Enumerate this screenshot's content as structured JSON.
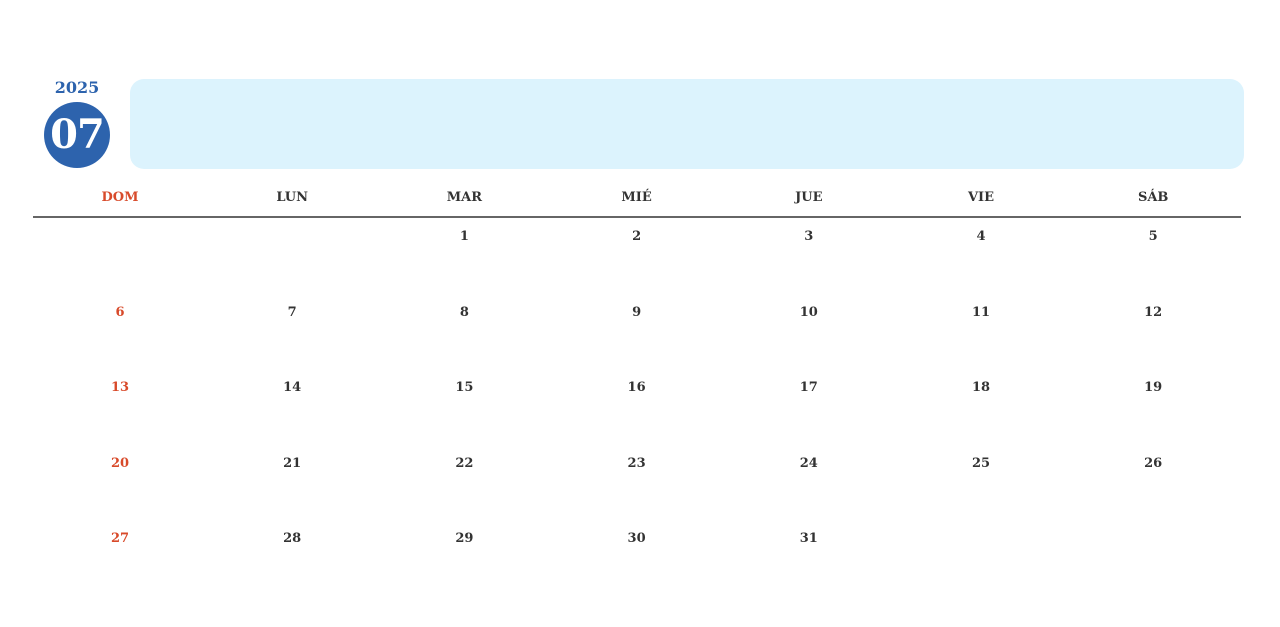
{
  "header": {
    "year": "2025",
    "month": "07"
  },
  "colors": {
    "accent": "#2d63ad",
    "sunday": "#d84a2a",
    "notes_bg": "#dcf3fd"
  },
  "weekdays": [
    "DOM",
    "LUN",
    "MAR",
    "MIÉ",
    "JUE",
    "VIE",
    "SÁB"
  ],
  "weeks": [
    [
      "",
      "",
      "1",
      "2",
      "3",
      "4",
      "5"
    ],
    [
      "6",
      "7",
      "8",
      "9",
      "10",
      "11",
      "12"
    ],
    [
      "13",
      "14",
      "15",
      "16",
      "17",
      "18",
      "19"
    ],
    [
      "20",
      "21",
      "22",
      "23",
      "24",
      "25",
      "26"
    ],
    [
      "27",
      "28",
      "29",
      "30",
      "31",
      "",
      ""
    ]
  ]
}
